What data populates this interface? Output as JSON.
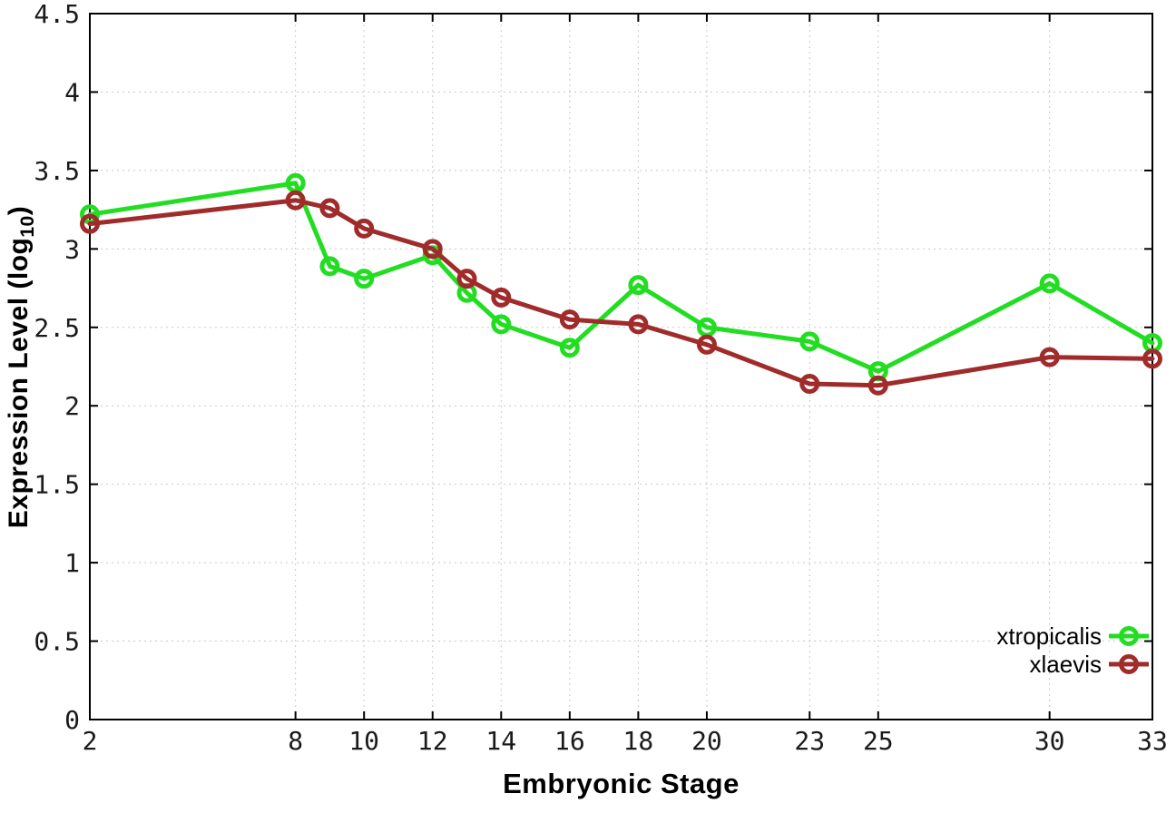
{
  "chart_data": {
    "type": "line",
    "title": "",
    "xlabel": "Embryonic Stage",
    "ylabel": "Expression Level (log10)",
    "ylabel_parts": {
      "prefix": "Expression Level (log",
      "sub": "10",
      "suffix": ")"
    },
    "x": [
      2,
      8,
      9,
      10,
      12,
      13,
      14,
      16,
      18,
      20,
      23,
      25,
      30,
      33
    ],
    "series": [
      {
        "name": "xtropicalis",
        "color": "#22dd22",
        "values": [
          3.22,
          3.42,
          2.89,
          2.81,
          2.96,
          2.72,
          2.52,
          2.37,
          2.77,
          2.5,
          2.41,
          2.22,
          2.78,
          2.4
        ]
      },
      {
        "name": "xlaevis",
        "color": "#a02b2b",
        "values": [
          3.16,
          3.31,
          3.26,
          3.13,
          3.0,
          2.81,
          2.69,
          2.55,
          2.52,
          2.39,
          2.14,
          2.13,
          2.31,
          2.3
        ]
      }
    ],
    "xlim": [
      2,
      33
    ],
    "ylim": [
      0,
      4.5
    ],
    "xticks": {
      "values": [
        2,
        8,
        10,
        12,
        14,
        16,
        18,
        20,
        23,
        25,
        30,
        33
      ],
      "labels": [
        "2",
        "8",
        "10",
        "12",
        "14",
        "16",
        "18",
        "20",
        "23",
        "25",
        "30",
        "33"
      ]
    },
    "yticks": {
      "values": [
        0,
        0.5,
        1,
        1.5,
        2,
        2.5,
        3,
        3.5,
        4,
        4.5
      ],
      "labels": [
        "0",
        "0.5",
        "1",
        "1.5",
        "2",
        "2.5",
        "3",
        "3.5",
        "4",
        "4.5"
      ]
    },
    "grid": true,
    "legend_position": "inside-bottom-right",
    "grid_color": "#c8c8c8",
    "border_color": "#000000",
    "text_color": "#1a1a1a"
  }
}
